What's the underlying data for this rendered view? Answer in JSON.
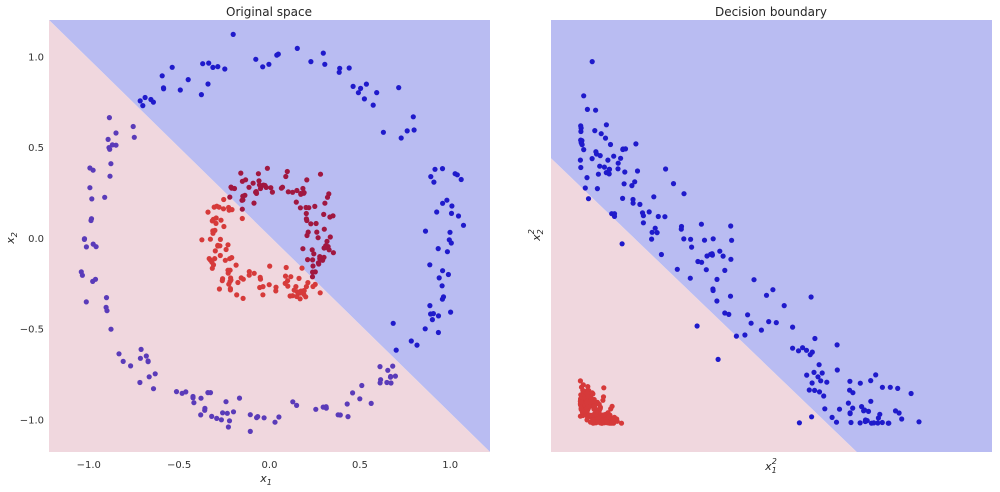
{
  "chart_data": [
    {
      "type": "scatter",
      "title": "Original space",
      "xlabel": "x",
      "xlabel_sub": "1",
      "ylabel": "x",
      "ylabel_sub": "2",
      "xlim": [
        -1.22,
        1.22
      ],
      "ylim": [
        -1.18,
        1.2
      ],
      "xticks": [
        -1.0,
        -0.5,
        0.0,
        0.5,
        1.0
      ],
      "xtick_labels": [
        "−1.0",
        "−0.5",
        "0.0",
        "0.5",
        "1.0"
      ],
      "yticks": [
        1.0,
        0.5,
        0.0,
        -0.5,
        -1.0
      ],
      "ytick_labels": [
        "1.0",
        "0.5",
        "0.0",
        "−0.5",
        "−1.0"
      ],
      "grid": false,
      "background": {
        "boundary_line": [
          [
            -1.22,
            1.2
          ],
          [
            1.22,
            -1.18
          ]
        ],
        "upper_region_color": "#b9bcf2",
        "lower_region_color": "#f0d7de"
      },
      "series": [
        {
          "group": "outer ring",
          "shape": "circle",
          "center": [
            0.0,
            0.0
          ],
          "radius": 1.0,
          "noise": 0.05,
          "n_points": 180,
          "color_upper_side": "#1f1acb",
          "color_lower_side": "#5a3bb9"
        },
        {
          "group": "inner ring",
          "shape": "circle",
          "center": [
            0.0,
            0.0
          ],
          "radius": 0.3,
          "noise": 0.05,
          "n_points": 180,
          "color_upper_side": "#a01740",
          "color_lower_side": "#d63a3a"
        }
      ]
    },
    {
      "type": "scatter",
      "title": "Decision boundary",
      "xlabel": "x",
      "xlabel_sub": "1",
      "xlabel_sup": "2",
      "ylabel": "x",
      "ylabel_sub": "2",
      "ylabel_sup": "2",
      "xlim": [
        -0.1,
        1.4
      ],
      "ylim": [
        -0.1,
        1.4
      ],
      "xticks": [],
      "yticks": [],
      "grid": false,
      "background": {
        "boundary_line": [
          [
            -0.1,
            0.92
          ],
          [
            0.94,
            -0.1
          ]
        ],
        "upper_region_color": "#b9bcf2",
        "lower_region_color": "#f0d7de"
      },
      "series": [
        {
          "group": "outer ring mapped",
          "transform": "squares of outer ring",
          "color": "#1f1acb"
        },
        {
          "group": "inner ring mapped",
          "transform": "squares of inner ring",
          "color": "#d63a3a"
        }
      ]
    }
  ]
}
